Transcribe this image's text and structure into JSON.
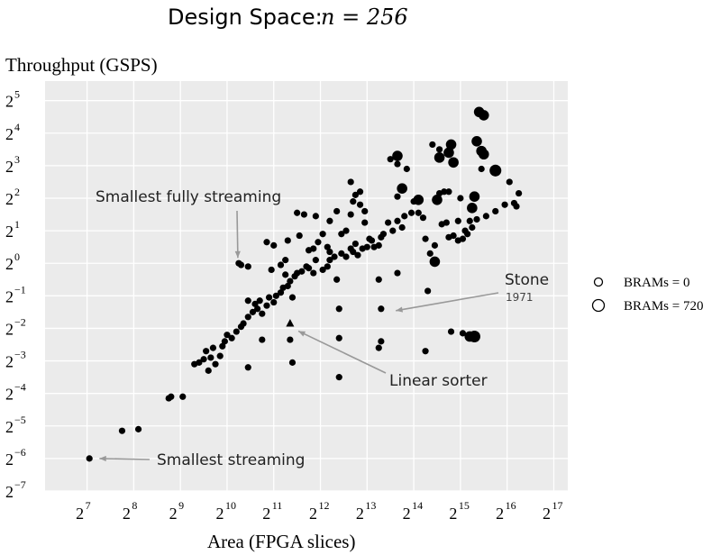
{
  "chart_data": {
    "type": "scatter",
    "title": "Design Space: ",
    "title_math": "n = 256",
    "xlabel": "Area (FPGA slices)",
    "ylabel": "Throughput (GSPS)",
    "x_scale": "log2",
    "y_scale": "log2",
    "xlim_log2": [
      6.1,
      17.3
    ],
    "ylim_log2": [
      -7.0,
      5.6
    ],
    "x_ticks_log2": [
      7,
      8,
      9,
      10,
      11,
      12,
      13,
      14,
      15,
      16,
      17
    ],
    "y_ticks_log2": [
      5,
      4,
      3,
      2,
      1,
      0,
      -1,
      -2,
      -3,
      -4,
      -5,
      -6,
      -7
    ],
    "grid": true,
    "legend_position": "right",
    "legend": [
      {
        "label": "BRAMs = 0",
        "brams": 0
      },
      {
        "label": "BRAMs = 720",
        "brams": 720
      }
    ],
    "points_log2": [
      [
        7.05,
        -6.0,
        0
      ],
      [
        7.75,
        -5.15,
        0
      ],
      [
        8.1,
        -5.1,
        0
      ],
      [
        8.75,
        -4.15,
        0
      ],
      [
        8.8,
        -4.1,
        0
      ],
      [
        9.05,
        -4.1,
        0
      ],
      [
        9.3,
        -3.1,
        0
      ],
      [
        9.4,
        -3.05,
        0
      ],
      [
        9.5,
        -2.95,
        0
      ],
      [
        9.6,
        -3.3,
        0
      ],
      [
        9.65,
        -2.9,
        0
      ],
      [
        9.75,
        -3.1,
        0
      ],
      [
        9.85,
        -2.85,
        0
      ],
      [
        9.55,
        -2.7,
        0
      ],
      [
        9.7,
        -2.6,
        0
      ],
      [
        9.9,
        -2.55,
        0
      ],
      [
        9.95,
        -2.4,
        0
      ],
      [
        10.0,
        -2.2,
        0
      ],
      [
        10.1,
        -2.3,
        0
      ],
      [
        10.2,
        -2.1,
        0
      ],
      [
        10.3,
        -1.95,
        0
      ],
      [
        10.35,
        -1.85,
        0
      ],
      [
        10.45,
        -1.65,
        0
      ],
      [
        10.55,
        -1.5,
        0
      ],
      [
        10.65,
        -1.4,
        0
      ],
      [
        10.75,
        -1.55,
        0
      ],
      [
        10.85,
        -1.3,
        0
      ],
      [
        10.45,
        -1.15,
        0
      ],
      [
        10.6,
        -1.25,
        0
      ],
      [
        10.7,
        -1.15,
        0
      ],
      [
        10.9,
        -1.05,
        0
      ],
      [
        11.0,
        -1.2,
        0
      ],
      [
        11.05,
        -1.0,
        0
      ],
      [
        11.15,
        -0.9,
        0
      ],
      [
        11.2,
        -0.75,
        0
      ],
      [
        11.3,
        -0.7,
        0
      ],
      [
        11.35,
        -0.55,
        0
      ],
      [
        11.45,
        -0.4,
        0
      ],
      [
        10.25,
        0.0,
        0
      ],
      [
        10.3,
        -0.05,
        0
      ],
      [
        10.45,
        -0.1,
        0
      ],
      [
        10.95,
        -0.2,
        0
      ],
      [
        11.15,
        -0.05,
        0
      ],
      [
        11.25,
        -0.35,
        0
      ],
      [
        11.4,
        -1.05,
        0
      ],
      [
        11.5,
        -0.3,
        0
      ],
      [
        11.6,
        -0.25,
        0
      ],
      [
        11.7,
        -0.1,
        0
      ],
      [
        11.75,
        -0.15,
        0
      ],
      [
        11.85,
        -0.3,
        0
      ],
      [
        11.9,
        0.1,
        0
      ],
      [
        12.05,
        -0.2,
        0
      ],
      [
        12.15,
        -0.1,
        0
      ],
      [
        12.2,
        0.1,
        0
      ],
      [
        12.3,
        0.2,
        0
      ],
      [
        12.35,
        -0.5,
        0
      ],
      [
        12.45,
        0.3,
        0
      ],
      [
        12.55,
        0.2,
        0
      ],
      [
        12.65,
        0.45,
        0
      ],
      [
        12.7,
        0.35,
        0
      ],
      [
        12.75,
        0.6,
        0
      ],
      [
        12.8,
        0.25,
        0
      ],
      [
        12.9,
        0.45,
        0
      ],
      [
        13.0,
        0.5,
        0
      ],
      [
        13.1,
        0.7,
        0
      ],
      [
        13.15,
        0.5,
        0
      ],
      [
        13.3,
        0.8,
        0
      ],
      [
        13.35,
        0.9,
        0
      ],
      [
        10.85,
        0.65,
        0
      ],
      [
        11.0,
        0.55,
        0
      ],
      [
        11.25,
        0.1,
        0
      ],
      [
        11.3,
        0.7,
        0
      ],
      [
        11.55,
        0.85,
        0
      ],
      [
        11.75,
        0.4,
        0
      ],
      [
        11.85,
        0.45,
        0
      ],
      [
        12.05,
        0.9,
        0
      ],
      [
        12.2,
        0.35,
        0
      ],
      [
        11.5,
        1.55,
        0
      ],
      [
        11.65,
        1.5,
        0
      ],
      [
        11.9,
        1.45,
        0
      ],
      [
        12.2,
        1.3,
        0
      ],
      [
        12.35,
        1.6,
        0
      ],
      [
        12.55,
        1.0,
        0
      ],
      [
        12.65,
        1.5,
        0
      ],
      [
        12.7,
        1.9,
        0
      ],
      [
        12.85,
        1.8,
        0
      ],
      [
        12.95,
        1.25,
        0
      ],
      [
        13.05,
        0.75,
        0
      ],
      [
        12.65,
        2.5,
        0
      ],
      [
        12.75,
        2.1,
        0
      ],
      [
        12.85,
        2.2,
        0
      ],
      [
        12.95,
        1.6,
        0
      ],
      [
        13.25,
        0.55,
        0
      ],
      [
        13.45,
        1.25,
        0
      ],
      [
        13.55,
        1.0,
        0
      ],
      [
        13.65,
        1.3,
        0
      ],
      [
        13.75,
        1.1,
        0
      ],
      [
        13.8,
        1.45,
        0
      ],
      [
        13.95,
        1.55,
        0
      ],
      [
        14.1,
        1.55,
        0
      ],
      [
        14.2,
        1.4,
        0
      ],
      [
        13.25,
        -0.5,
        0
      ],
      [
        13.3,
        -1.4,
        0
      ],
      [
        13.3,
        -2.4,
        0
      ],
      [
        13.65,
        -0.3,
        0
      ],
      [
        12.4,
        -1.4,
        0
      ],
      [
        12.4,
        -2.3,
        0
      ],
      [
        12.4,
        -3.5,
        0
      ],
      [
        11.35,
        -2.35,
        0
      ],
      [
        11.4,
        -3.05,
        0
      ],
      [
        10.75,
        -2.35,
        0
      ],
      [
        10.45,
        -3.2,
        0
      ],
      [
        13.5,
        3.2,
        0
      ],
      [
        13.65,
        3.05,
        0
      ],
      [
        13.85,
        2.9,
        0
      ],
      [
        14.4,
        3.65,
        0
      ],
      [
        14.55,
        3.5,
        0
      ],
      [
        13.65,
        2.05,
        0
      ],
      [
        14.0,
        1.9,
        0
      ],
      [
        14.25,
        0.75,
        0
      ],
      [
        14.35,
        0.3,
        0
      ],
      [
        14.45,
        0.55,
        0
      ],
      [
        14.6,
        1.2,
        0
      ],
      [
        14.7,
        1.25,
        0
      ],
      [
        14.75,
        0.8,
        0
      ],
      [
        14.85,
        0.85,
        0
      ],
      [
        15.05,
        0.75,
        0
      ],
      [
        15.15,
        0.9,
        0
      ],
      [
        15.25,
        1.1,
        0
      ],
      [
        15.35,
        1.35,
        0
      ],
      [
        15.55,
        1.45,
        0
      ],
      [
        15.75,
        1.6,
        0
      ],
      [
        15.95,
        1.8,
        0
      ],
      [
        16.15,
        1.85,
        0
      ],
      [
        16.2,
        1.75,
        0
      ],
      [
        16.25,
        2.15,
        0
      ],
      [
        14.25,
        -2.7,
        0
      ],
      [
        14.8,
        -2.1,
        0
      ],
      [
        15.05,
        -2.15,
        0
      ],
      [
        16.05,
        2.5,
        0
      ],
      [
        14.3,
        -0.85,
        0
      ],
      [
        15.0,
        2.0,
        0
      ],
      [
        15.2,
        1.3,
        0
      ],
      [
        15.45,
        2.9,
        0
      ],
      [
        14.95,
        0.7,
        0
      ],
      [
        15.1,
        1.0,
        0
      ],
      [
        14.55,
        2.15,
        0
      ],
      [
        14.65,
        2.2,
        0
      ],
      [
        14.75,
        2.2,
        0
      ],
      [
        14.95,
        1.3,
        0
      ],
      [
        13.25,
        -2.6,
        0
      ],
      [
        12.45,
        0.9,
        0
      ],
      [
        12.15,
        0.5,
        0
      ],
      [
        11.95,
        0.65,
        0
      ],
      [
        15.4,
        4.65,
        360
      ],
      [
        15.5,
        4.55,
        360
      ],
      [
        15.35,
        3.75,
        360
      ],
      [
        15.45,
        3.45,
        360
      ],
      [
        15.5,
        3.35,
        360
      ],
      [
        15.3,
        2.05,
        360
      ],
      [
        15.25,
        1.7,
        360
      ],
      [
        15.2,
        -2.25,
        360
      ],
      [
        15.75,
        2.85,
        480
      ],
      [
        14.45,
        0.05,
        360
      ],
      [
        14.8,
        3.65,
        360
      ],
      [
        14.55,
        3.25,
        360
      ],
      [
        14.75,
        3.4,
        360
      ],
      [
        13.75,
        2.3,
        360
      ],
      [
        14.1,
        1.95,
        360
      ],
      [
        13.65,
        3.3,
        360
      ],
      [
        14.85,
        3.1,
        360
      ],
      [
        14.5,
        1.95,
        360
      ],
      [
        15.3,
        -2.25,
        480
      ]
    ],
    "linear_sorter_point_log2": [
      11.35,
      -1.85
    ],
    "annotations": [
      {
        "text": "Smallest fully streaming",
        "target_log2": [
          10.25,
          0.0
        ]
      },
      {
        "text": "Smallest streaming",
        "target_log2": [
          7.15,
          -6.0
        ]
      },
      {
        "text": "Stone",
        "subtext": "1971",
        "target_log2": [
          13.5,
          -1.4
        ]
      },
      {
        "text": "Linear sorter",
        "target_log2": [
          11.45,
          -2.0
        ]
      }
    ]
  }
}
